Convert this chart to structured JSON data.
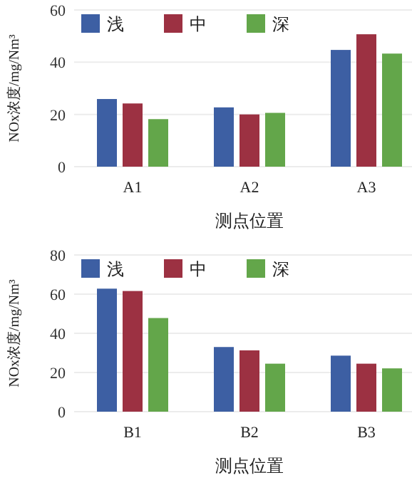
{
  "chart_data": [
    {
      "type": "bar",
      "categories": [
        "A1",
        "A2",
        "A3"
      ],
      "xlabel": "测点位置",
      "ylabel": "NOx浓度/mg/Nm³",
      "ylim": [
        0,
        60
      ],
      "yticks": [
        0,
        20,
        40,
        60
      ],
      "grid": "y",
      "legend": "top left",
      "series": [
        {
          "name": "浅",
          "color": "#3d5fa3",
          "values": [
            25.9,
            22.7,
            44.7
          ]
        },
        {
          "name": "中",
          "color": "#9c3142",
          "values": [
            24.2,
            20,
            50.7
          ]
        },
        {
          "name": "深",
          "color": "#63a64a",
          "values": [
            18.2,
            20.6,
            43.3
          ]
        }
      ]
    },
    {
      "type": "bar",
      "categories": [
        "B1",
        "B2",
        "B3"
      ],
      "xlabel": "测点位置",
      "ylabel": "NOx浓度/mg/Nm³",
      "ylim": [
        0,
        80
      ],
      "yticks": [
        0,
        20,
        40,
        60,
        80
      ],
      "grid": "y",
      "legend": "top left",
      "series": [
        {
          "name": "浅",
          "color": "#3d5fa3",
          "values": [
            62.8,
            33,
            28.6
          ]
        },
        {
          "name": "中",
          "color": "#9c3142",
          "values": [
            61.6,
            31.3,
            24.5
          ]
        },
        {
          "name": "深",
          "color": "#63a64a",
          "values": [
            47.8,
            24.5,
            22.1
          ]
        }
      ]
    }
  ]
}
